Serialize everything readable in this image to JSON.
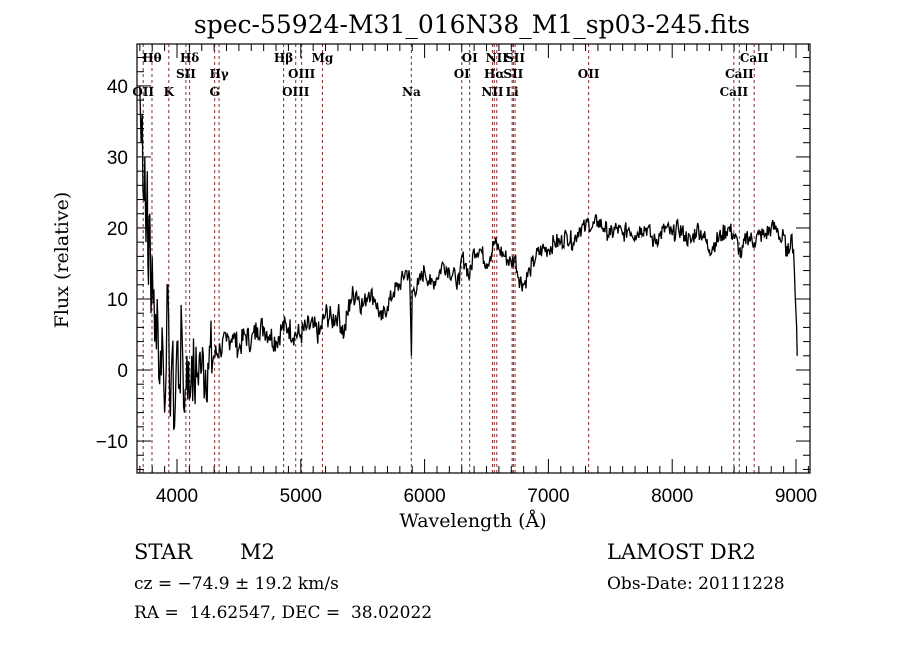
{
  "chart_data": {
    "type": "line",
    "title": "spec-55924-M31_016N38_M1_sp03-245.fits",
    "xlabel": "Wavelength (Å)",
    "ylabel": "Flux (relative)",
    "xlim": [
      3677,
      9113
    ],
    "ylim": [
      -14.5,
      45.9
    ],
    "grid": false,
    "x_ticks": [
      {
        "value": 4000,
        "label": "4000"
      },
      {
        "value": 5000,
        "label": "5000"
      },
      {
        "value": 6000,
        "label": "6000"
      },
      {
        "value": 7000,
        "label": "7000"
      },
      {
        "value": 8000,
        "label": "8000"
      },
      {
        "value": 9000,
        "label": "9000"
      }
    ],
    "y_ticks": [
      {
        "value": -10,
        "label": "−10"
      },
      {
        "value": 0,
        "label": "0"
      },
      {
        "value": 10,
        "label": "10"
      },
      {
        "value": 20,
        "label": "20"
      },
      {
        "value": 30,
        "label": "30"
      },
      {
        "value": 40,
        "label": "40"
      }
    ],
    "line_color": "#000000",
    "marker_line_color": "#8b2a2a",
    "series": [
      {
        "name": "flux",
        "x": [
          3700,
          3710,
          3720,
          3730,
          3740,
          3750,
          3760,
          3770,
          3780,
          3790,
          3800,
          3820,
          3840,
          3860,
          3880,
          3900,
          3920,
          3940,
          3960,
          3980,
          4000,
          4020,
          4040,
          4060,
          4080,
          4100,
          4120,
          4140,
          4160,
          4180,
          4200,
          4250,
          4300,
          4350,
          4400,
          4450,
          4500,
          4550,
          4600,
          4650,
          4700,
          4750,
          4800,
          4850,
          4900,
          4950,
          5000,
          5050,
          5100,
          5150,
          5200,
          5250,
          5300,
          5350,
          5400,
          5450,
          5500,
          5550,
          5600,
          5650,
          5700,
          5750,
          5800,
          5850,
          5880,
          5893,
          5900,
          5950,
          6000,
          6050,
          6100,
          6150,
          6200,
          6250,
          6280,
          6300,
          6330,
          6364,
          6400,
          6450,
          6500,
          6530,
          6563,
          6600,
          6650,
          6700,
          6730,
          6760,
          6800,
          6850,
          6900,
          6950,
          7000,
          7050,
          7100,
          7150,
          7200,
          7250,
          7300,
          7325,
          7350,
          7400,
          7450,
          7500,
          7550,
          7600,
          7650,
          7700,
          7750,
          7800,
          7850,
          7900,
          7950,
          8000,
          8050,
          8100,
          8150,
          8200,
          8250,
          8300,
          8350,
          8400,
          8450,
          8498,
          8542,
          8560,
          8600,
          8662,
          8700,
          8750,
          8800,
          8850,
          8880,
          8900,
          8930,
          8960,
          8980,
          9000,
          9010
        ],
        "values": [
          40,
          32,
          36,
          24,
          30,
          18,
          28,
          12,
          22,
          8,
          16,
          4,
          10,
          -2,
          6,
          -6,
          12,
          -4,
          2,
          -8,
          4,
          -2,
          6,
          -6,
          2,
          -4,
          2,
          -2,
          -1,
          2,
          0,
          1,
          2,
          3,
          4,
          5,
          3,
          5,
          4,
          6,
          6,
          5,
          4,
          6,
          6,
          5,
          5,
          6,
          6,
          5,
          8,
          7,
          8,
          5,
          10,
          11,
          9,
          11,
          10,
          7,
          9,
          11,
          12,
          14,
          13,
          2,
          11,
          12,
          14,
          12,
          13,
          15,
          14,
          13,
          12,
          16,
          15,
          13,
          17,
          17,
          15,
          16,
          18,
          17,
          16,
          15,
          16,
          13,
          12,
          14,
          16,
          17,
          17,
          18,
          18,
          19,
          18,
          20,
          20,
          21,
          20,
          21,
          20,
          19,
          20,
          19,
          20,
          19,
          20,
          20,
          18,
          19,
          20,
          19,
          20,
          19,
          18,
          20,
          19,
          17,
          18,
          19,
          20,
          19,
          17,
          16,
          19,
          18,
          19,
          19,
          20,
          20,
          18,
          19,
          16,
          19,
          17,
          8,
          2
        ]
      }
    ],
    "spectral_lines": [
      {
        "label": "OII",
        "wavelength": 3727,
        "row": 3
      },
      {
        "label": "Hθ",
        "wavelength": 3798,
        "row": 1
      },
      {
        "label": "K",
        "wavelength": 3934,
        "row": 3
      },
      {
        "label": "SII",
        "wavelength": 4072,
        "row": 2
      },
      {
        "label": "Hδ",
        "wavelength": 4102,
        "row": 1
      },
      {
        "label": "G",
        "wavelength": 4304,
        "row": 3
      },
      {
        "label": "Hγ",
        "wavelength": 4340,
        "row": 2
      },
      {
        "label": "Hβ",
        "wavelength": 4861,
        "row": 1
      },
      {
        "label": "OIII",
        "wavelength": 4959,
        "row": 3
      },
      {
        "label": "OIII",
        "wavelength": 5007,
        "row": 2
      },
      {
        "label": "Mg",
        "wavelength": 5175,
        "row": 1
      },
      {
        "label": "Na",
        "wavelength": 5893,
        "row": 3
      },
      {
        "label": "OI",
        "wavelength": 6300,
        "row": 2
      },
      {
        "label": "OI",
        "wavelength": 6364,
        "row": 1
      },
      {
        "label": "NII",
        "wavelength": 6548,
        "row": 3
      },
      {
        "label": "Hα",
        "wavelength": 6563,
        "row": 2
      },
      {
        "label": "NII",
        "wavelength": 6583,
        "row": 1
      },
      {
        "label": "Li",
        "wavelength": 6707,
        "row": 3
      },
      {
        "label": "SII",
        "wavelength": 6717,
        "row": 2
      },
      {
        "label": "SII",
        "wavelength": 6731,
        "row": 1
      },
      {
        "label": "OII",
        "wavelength": 7325,
        "row": 2
      },
      {
        "label": "CaII",
        "wavelength": 8498,
        "row": 3
      },
      {
        "label": "CaII",
        "wavelength": 8542,
        "row": 2
      },
      {
        "label": "CaII",
        "wavelength": 8662,
        "row": 1
      }
    ]
  },
  "info": {
    "object_class": "STAR",
    "subclass": "M2",
    "survey": "LAMOST DR2",
    "redshift_text": "cz = −74.9 ± 19.2 km/s",
    "obs_date_text": "Obs-Date: 20111228",
    "coords_text": "RA =  14.62547, DEC =  38.02022"
  }
}
